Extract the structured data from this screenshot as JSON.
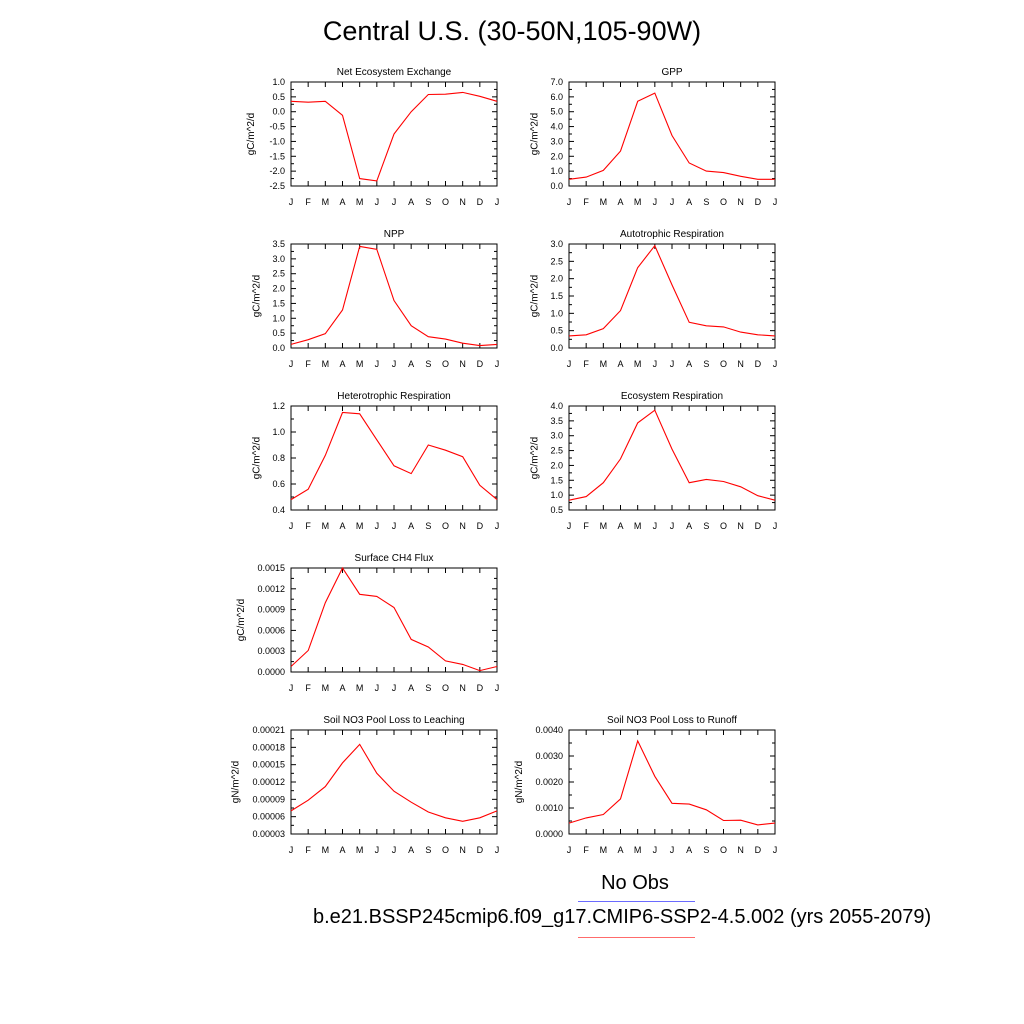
{
  "page": {
    "title": "Central U.S. (30-50N,105-90W)",
    "legend": {
      "obs_label": "No Obs",
      "obs_color": "#6b6bff",
      "model_label": "b.e21.BSSP245cmip6.f09_g17.CMIP6-SSP2-4.5.002 (yrs 2055-2079)",
      "model_color": "#ff6b6b"
    },
    "line_color": "#ff0000"
  },
  "chart_data": [
    {
      "type": "line",
      "title": "Net Ecosystem Exchange",
      "ylabel": "gC/m^2/d",
      "x": [
        "J",
        "F",
        "M",
        "A",
        "M",
        "J",
        "J",
        "A",
        "S",
        "O",
        "N",
        "D",
        "J"
      ],
      "ylim": [
        -2.5,
        1.0
      ],
      "yticks": [
        "-2.5",
        "-2.0",
        "-1.5",
        "-1.0",
        "-0.5",
        "0.0",
        "0.5",
        "1.0"
      ],
      "tick_values": [
        -2.5,
        -2.0,
        -1.5,
        -1.0,
        -0.5,
        0.0,
        0.5,
        1.0
      ],
      "series": [
        {
          "values": [
            0.35,
            0.32,
            0.35,
            -0.12,
            -2.25,
            -2.33,
            -0.75,
            0.0,
            0.58,
            0.59,
            0.65,
            0.52,
            0.35
          ]
        }
      ]
    },
    {
      "type": "line",
      "title": "GPP",
      "ylabel": "gC/m^2/d",
      "x": [
        "J",
        "F",
        "M",
        "A",
        "M",
        "J",
        "J",
        "A",
        "S",
        "O",
        "N",
        "D",
        "J"
      ],
      "ylim": [
        0,
        7.0
      ],
      "yticks": [
        "0.0",
        "1.0",
        "2.0",
        "3.0",
        "4.0",
        "5.0",
        "6.0",
        "7.0"
      ],
      "tick_values": [
        0,
        1,
        2,
        3,
        4,
        5,
        6,
        7
      ],
      "series": [
        {
          "values": [
            0.45,
            0.6,
            1.05,
            2.35,
            5.7,
            6.25,
            3.4,
            1.55,
            1.0,
            0.9,
            0.65,
            0.45,
            0.45
          ]
        }
      ]
    },
    {
      "type": "line",
      "title": "NPP",
      "ylabel": "gC/m^2/d",
      "x": [
        "J",
        "F",
        "M",
        "A",
        "M",
        "J",
        "J",
        "A",
        "S",
        "O",
        "N",
        "D",
        "J"
      ],
      "ylim": [
        0,
        3.5
      ],
      "yticks": [
        "0.0",
        "0.5",
        "1.0",
        "1.5",
        "2.0",
        "2.5",
        "3.0",
        "3.5"
      ],
      "tick_values": [
        0,
        0.5,
        1.0,
        1.5,
        2.0,
        2.5,
        3.0,
        3.5
      ],
      "series": [
        {
          "values": [
            0.12,
            0.28,
            0.48,
            1.28,
            3.42,
            3.32,
            1.6,
            0.75,
            0.38,
            0.3,
            0.16,
            0.08,
            0.12
          ]
        }
      ]
    },
    {
      "type": "line",
      "title": "Autotrophic Respiration",
      "ylabel": "gC/m^2/d",
      "x": [
        "J",
        "F",
        "M",
        "A",
        "M",
        "J",
        "J",
        "A",
        "S",
        "O",
        "N",
        "D",
        "J"
      ],
      "ylim": [
        0,
        3.0
      ],
      "yticks": [
        "0.0",
        "0.5",
        "1.0",
        "1.5",
        "2.0",
        "2.5",
        "3.0"
      ],
      "tick_values": [
        0,
        0.5,
        1.0,
        1.5,
        2.0,
        2.5,
        3.0
      ],
      "series": [
        {
          "values": [
            0.35,
            0.38,
            0.56,
            1.08,
            2.32,
            2.95,
            1.82,
            0.74,
            0.64,
            0.61,
            0.46,
            0.38,
            0.35
          ]
        }
      ]
    },
    {
      "type": "line",
      "title": "Heterotrophic Respiration",
      "ylabel": "gC/m^2/d",
      "x": [
        "J",
        "F",
        "M",
        "A",
        "M",
        "J",
        "J",
        "A",
        "S",
        "O",
        "N",
        "D",
        "J"
      ],
      "ylim": [
        0.4,
        1.2
      ],
      "yticks": [
        "0.4",
        "0.6",
        "0.8",
        "1.0",
        "1.2"
      ],
      "tick_values": [
        0.4,
        0.6,
        0.8,
        1.0,
        1.2
      ],
      "series": [
        {
          "values": [
            0.48,
            0.56,
            0.82,
            1.15,
            1.14,
            0.94,
            0.74,
            0.68,
            0.9,
            0.86,
            0.81,
            0.59,
            0.48
          ]
        }
      ]
    },
    {
      "type": "line",
      "title": "Ecosystem Respiration",
      "ylabel": "gC/m^2/d",
      "x": [
        "J",
        "F",
        "M",
        "A",
        "M",
        "J",
        "J",
        "A",
        "S",
        "O",
        "N",
        "D",
        "J"
      ],
      "ylim": [
        0.5,
        4.0
      ],
      "yticks": [
        "0.5",
        "1.0",
        "1.5",
        "2.0",
        "2.5",
        "3.0",
        "3.5",
        "4.0"
      ],
      "tick_values": [
        0.5,
        1.0,
        1.5,
        2.0,
        2.5,
        3.0,
        3.5,
        4.0
      ],
      "series": [
        {
          "values": [
            0.83,
            0.95,
            1.42,
            2.22,
            3.43,
            3.86,
            2.55,
            1.42,
            1.53,
            1.46,
            1.28,
            0.98,
            0.83
          ]
        }
      ]
    },
    {
      "type": "line",
      "title": "Surface CH4 Flux",
      "ylabel": "gC/m^2/d",
      "x": [
        "J",
        "F",
        "M",
        "A",
        "M",
        "J",
        "J",
        "A",
        "S",
        "O",
        "N",
        "D",
        "J"
      ],
      "ylim": [
        0,
        0.0015
      ],
      "yticks": [
        "0.0000",
        "0.0003",
        "0.0006",
        "0.0009",
        "0.0012",
        "0.0015"
      ],
      "tick_values": [
        0,
        0.0003,
        0.0006,
        0.0009,
        0.0012,
        0.0015
      ],
      "series": [
        {
          "values": [
            8e-05,
            0.00031,
            0.001,
            0.0015,
            0.00112,
            0.00109,
            0.00093,
            0.00047,
            0.00036,
            0.00016,
            0.00011,
            2e-05,
            8e-05
          ]
        }
      ]
    },
    {
      "type": "line",
      "title": "Soil NO3 Pool Loss to Leaching",
      "ylabel": "gN/m^2/d",
      "x": [
        "J",
        "F",
        "M",
        "A",
        "M",
        "J",
        "J",
        "A",
        "S",
        "O",
        "N",
        "D",
        "J"
      ],
      "ylim": [
        3e-05,
        0.00021
      ],
      "yticks": [
        "0.00003",
        "0.00006",
        "0.00009",
        "0.00012",
        "0.00015",
        "0.00018",
        "0.00021"
      ],
      "tick_values": [
        3e-05,
        6e-05,
        9e-05,
        0.00012,
        0.00015,
        0.00018,
        0.00021
      ],
      "series": [
        {
          "values": [
            7e-05,
            8.85e-05,
            0.000112,
            0.000153,
            0.000185,
            0.000135,
            0.000104,
            8.5e-05,
            6.8e-05,
            5.8e-05,
            5.2e-05,
            5.8e-05,
            7e-05
          ]
        }
      ]
    },
    {
      "type": "line",
      "title": "Soil NO3 Pool Loss to Runoff",
      "ylabel": "gN/m^2/d",
      "x": [
        "J",
        "F",
        "M",
        "A",
        "M",
        "J",
        "J",
        "A",
        "S",
        "O",
        "N",
        "D",
        "J"
      ],
      "ylim": [
        0,
        0.004
      ],
      "yticks": [
        "0.0000",
        "0.0010",
        "0.0020",
        "0.0030",
        "0.0040"
      ],
      "tick_values": [
        0,
        0.001,
        0.002,
        0.003,
        0.004
      ],
      "series": [
        {
          "values": [
            0.00042,
            0.00062,
            0.00075,
            0.00135,
            0.00358,
            0.00222,
            0.00118,
            0.00115,
            0.00093,
            0.00052,
            0.00053,
            0.00035,
            0.00042
          ]
        }
      ]
    }
  ]
}
